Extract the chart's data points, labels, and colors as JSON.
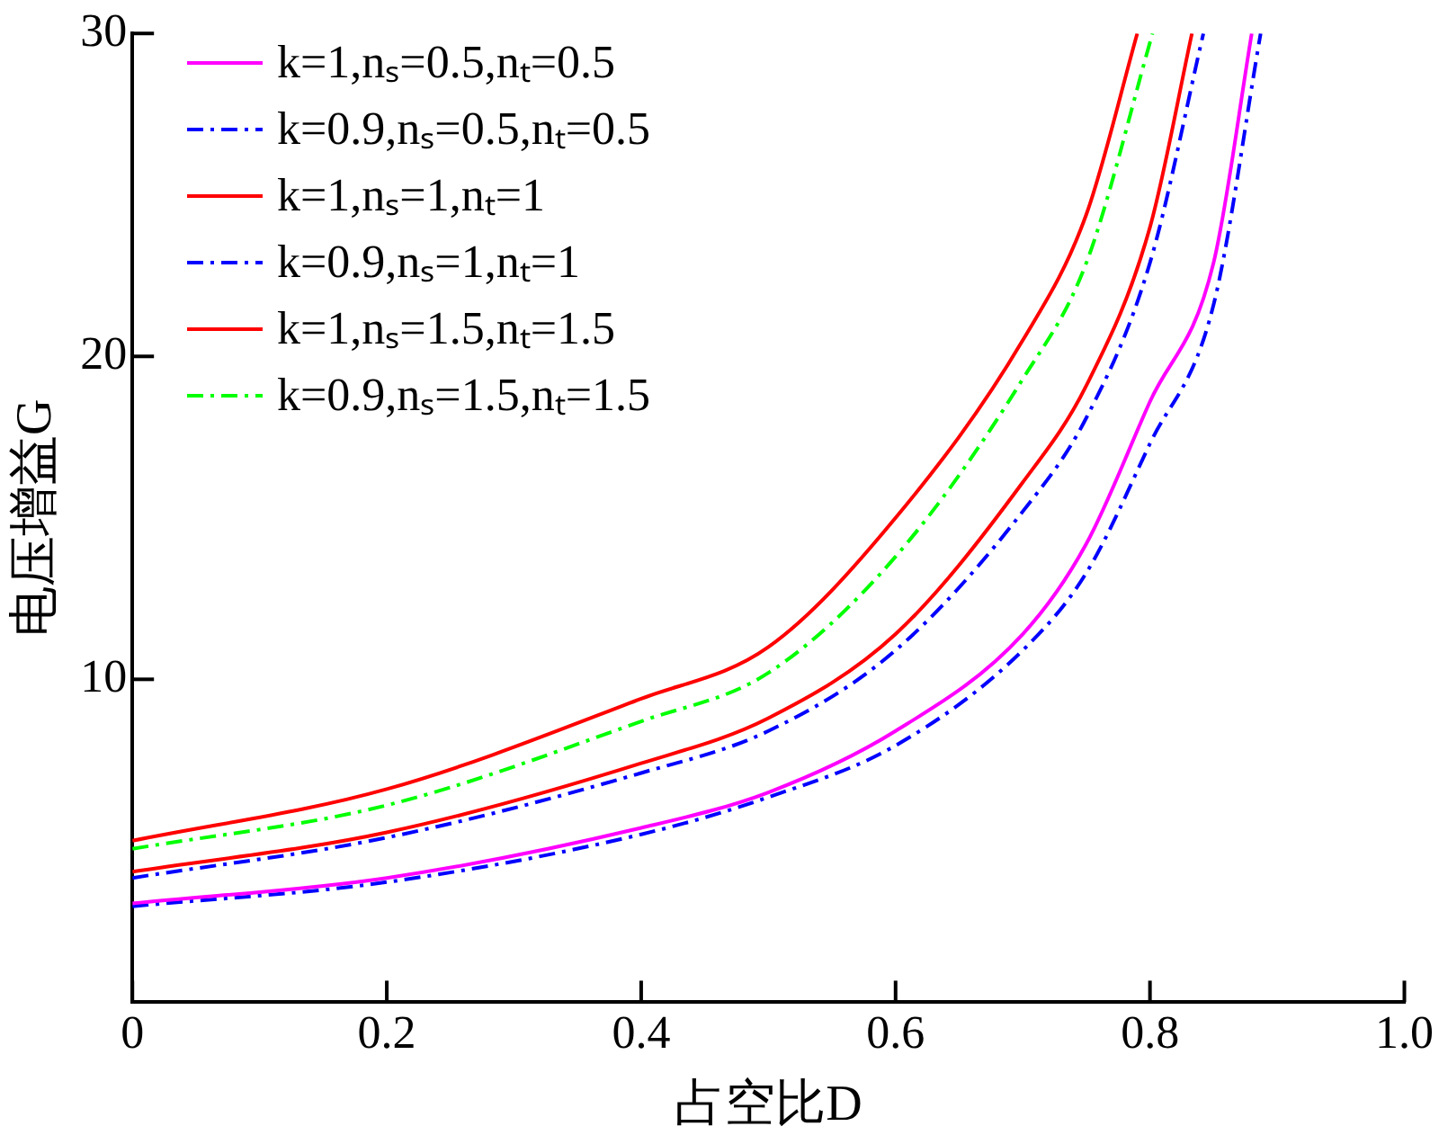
{
  "chart_data": {
    "type": "line",
    "xlabel": "占空比D",
    "ylabel": "电压增益G",
    "xlim": [
      0,
      1
    ],
    "ylim": [
      0,
      30
    ],
    "xticks": [
      0,
      0.2,
      0.4,
      0.6,
      0.8,
      {
        "value": 1,
        "label": "1.0"
      }
    ],
    "yticks": [
      10,
      20,
      30
    ],
    "grid": false,
    "legend": "top left",
    "marker": "none",
    "series": [
      {
        "name": "k=1,nₛ=0.5,nₜ=0.5",
        "color": "#ff00ff",
        "line_style": "solid",
        "x": [
          0,
          0.2,
          0.4,
          0.5,
          0.6,
          0.7,
          0.75,
          0.8,
          0.85,
          0.88
        ],
        "values": [
          3.06,
          3.85,
          5.4,
          6.5,
          8.4,
          11.4,
          14.2,
          18.6,
          22.9,
          30
        ]
      },
      {
        "name": "k=0.9,nₛ=0.5,nₜ=0.5",
        "color": "#0000ff",
        "line_style": "dashed",
        "x": [
          0,
          0.2,
          0.4,
          0.5,
          0.6,
          0.7,
          0.75,
          0.8,
          0.85,
          0.887
        ],
        "values": [
          2.97,
          3.72,
          5.2,
          6.35,
          7.95,
          10.9,
          13.3,
          17.3,
          21.6,
          30
        ]
      },
      {
        "name": "k=1,nₛ=1,nₜ=1",
        "color": "#ff0000",
        "line_style": "solid",
        "x": [
          0,
          0.2,
          0.4,
          0.5,
          0.6,
          0.7,
          0.75,
          0.8,
          0.833
        ],
        "values": [
          4.04,
          5.26,
          7.4,
          8.8,
          11.4,
          16.1,
          19.1,
          24,
          30
        ]
      },
      {
        "name": "k=0.9,nₛ=1,nₜ=1",
        "color": "#0000ff",
        "line_style": "dashed",
        "x": [
          0,
          0.2,
          0.4,
          0.5,
          0.6,
          0.7,
          0.75,
          0.8,
          0.842
        ],
        "values": [
          3.85,
          5.1,
          7.1,
          8.4,
          10.9,
          15.2,
          18.1,
          22.9,
          30
        ]
      },
      {
        "name": "k=1,nₛ=1.5,nₜ=1.5",
        "color": "#ff0000",
        "line_style": "solid",
        "x": [
          0,
          0.2,
          0.4,
          0.5,
          0.6,
          0.7,
          0.75,
          0.79
        ],
        "values": [
          5,
          6.6,
          9.4,
          11,
          15,
          20.5,
          24.4,
          30
        ]
      },
      {
        "name": "k=0.9,nₛ=1.5,nₜ=1.5",
        "color": "#00ff00",
        "line_style": "dashed",
        "x": [
          0,
          0.2,
          0.4,
          0.5,
          0.6,
          0.7,
          0.75,
          0.802
        ],
        "values": [
          4.75,
          6.1,
          8.7,
          10.2,
          13.8,
          19.3,
          22.9,
          30
        ]
      }
    ]
  }
}
